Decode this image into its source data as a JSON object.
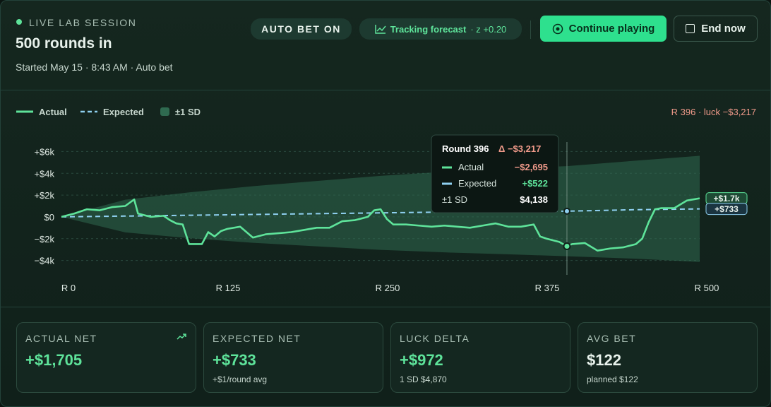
{
  "header": {
    "status": "LIVE LAB SESSION",
    "title": "500 rounds in",
    "subtitle": "Started May 15 · 8:43 AM · Auto bet",
    "badge": "AUTO BET ON",
    "forecast": "Tracking forecast",
    "forecast_z": "· z +0.20",
    "primary_button": "Continue playing",
    "secondary_button": "End now"
  },
  "chart_data": {
    "type": "line",
    "annotation": "R 396 · luck −$3,217",
    "xlim": [
      0,
      500
    ],
    "ylim": [
      -5000,
      7000
    ],
    "grid": true,
    "xticks": [
      {
        "value": 0,
        "label": "R 0"
      },
      {
        "value": 125,
        "label": "R 125"
      },
      {
        "value": 250,
        "label": "R 250"
      },
      {
        "value": 375,
        "label": "R 375"
      },
      {
        "value": 500,
        "label": "R 500"
      }
    ],
    "yticks": [
      {
        "value": 6000,
        "label": "+$6k"
      },
      {
        "value": 4000,
        "label": "+$4k"
      },
      {
        "value": 2000,
        "label": "+$2k"
      },
      {
        "value": 0,
        "label": "$0"
      },
      {
        "value": -2000,
        "label": "−$2k"
      },
      {
        "value": -4000,
        "label": "−$4k"
      }
    ],
    "series": [
      {
        "name": "Actual",
        "color": "#5ee39a",
        "end_label": "+$1.7k",
        "x": [
          0,
          10,
          20,
          30,
          40,
          50,
          57,
          60,
          70,
          80,
          85,
          90,
          95,
          100,
          110,
          115,
          120,
          125,
          130,
          140,
          150,
          160,
          170,
          180,
          190,
          200,
          210,
          220,
          230,
          240,
          245,
          250,
          255,
          260,
          270,
          280,
          290,
          300,
          310,
          320,
          330,
          340,
          350,
          360,
          370,
          375,
          380,
          390,
          396,
          400,
          410,
          420,
          430,
          440,
          450,
          455,
          460,
          465,
          470,
          480,
          490,
          500
        ],
        "values": [
          0,
          300,
          700,
          600,
          900,
          1000,
          1600,
          300,
          0,
          100,
          -300,
          -600,
          -700,
          -2500,
          -2500,
          -1400,
          -1800,
          -1300,
          -1100,
          -900,
          -1900,
          -1600,
          -1500,
          -1400,
          -1200,
          -1000,
          -1000,
          -400,
          -300,
          0,
          600,
          700,
          -200,
          -700,
          -700,
          -800,
          -900,
          -800,
          -900,
          -1000,
          -800,
          -600,
          -900,
          -900,
          -700,
          -1800,
          -2000,
          -2300,
          -2695,
          -2500,
          -2400,
          -3100,
          -2900,
          -2800,
          -2500,
          -2000,
          -500,
          700,
          800,
          800,
          1500,
          1705
        ]
      },
      {
        "name": "Expected",
        "color": "#8fd0f0",
        "end_label": "+$733",
        "x": [
          0,
          50,
          100,
          150,
          200,
          250,
          300,
          350,
          396,
          450,
          500
        ],
        "values": [
          0,
          73,
          147,
          220,
          293,
          367,
          440,
          513,
          522,
          660,
          733
        ]
      },
      {
        "name": "±1 SD",
        "color": "#2f6a50",
        "x": [
          0,
          50,
          100,
          150,
          200,
          250,
          300,
          350,
          396,
          450,
          500
        ],
        "values": [
          0,
          1500,
          2100,
          2600,
          3000,
          3400,
          3700,
          3950,
          4138,
          4500,
          4870
        ]
      }
    ],
    "cursor": {
      "x": 396,
      "title": "Round 396",
      "delta": "Δ −$3,217",
      "rows": [
        {
          "label": "Actual",
          "value": "−$2,695"
        },
        {
          "label": "Expected",
          "value": "+$522"
        },
        {
          "label": "±1 SD",
          "value": "$4,138"
        }
      ]
    }
  },
  "cards": [
    {
      "label": "ACTUAL NET",
      "value": "+$1,705"
    },
    {
      "label": "EXPECTED NET",
      "value": "+$733",
      "sub": "+$1/round avg"
    },
    {
      "label": "LUCK DELTA",
      "value": "+$972",
      "sub": "1 SD $4,870"
    },
    {
      "label": "AVG BET",
      "value": "$122",
      "sub": "planned $122"
    }
  ]
}
